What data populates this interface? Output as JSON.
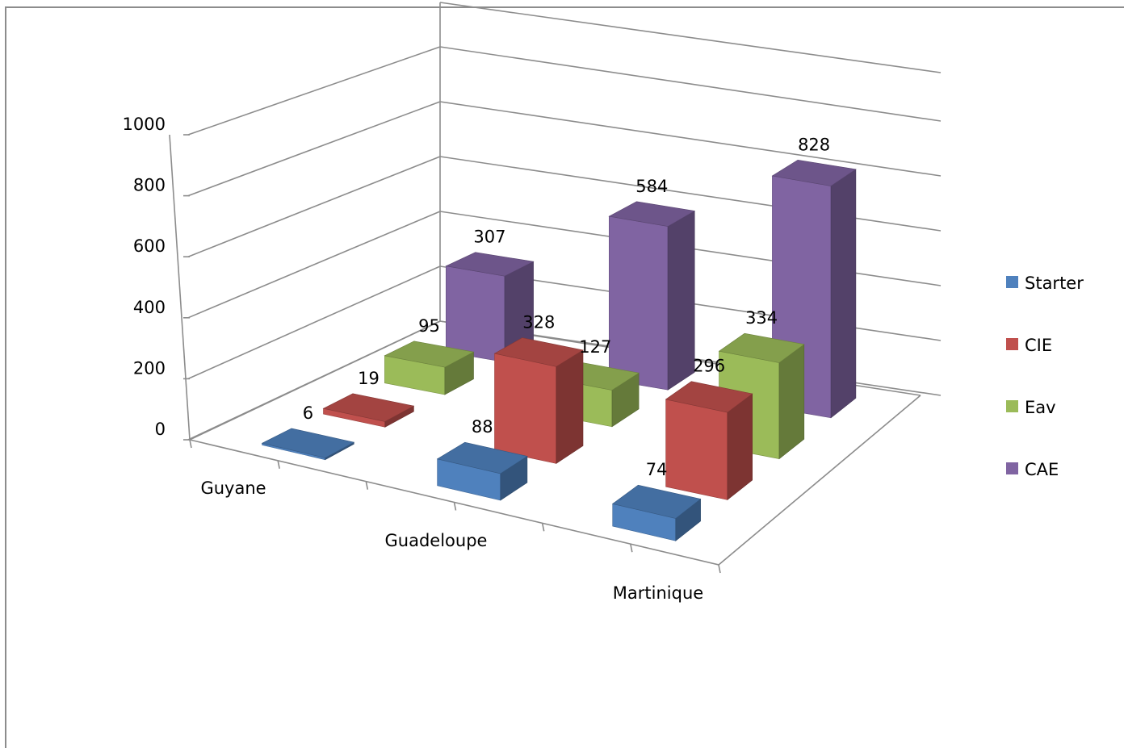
{
  "chart_data": {
    "type": "bar",
    "categories": [
      "Guyane",
      "Guadeloupe",
      "Martinique"
    ],
    "series": [
      {
        "name": "Starter",
        "values": [
          6,
          88,
          74
        ],
        "color": "#4f81bd"
      },
      {
        "name": "CIE",
        "values": [
          19,
          328,
          296
        ],
        "color": "#c0504d"
      },
      {
        "name": "Eav",
        "values": [
          95,
          127,
          334
        ],
        "color": "#9bbb59"
      },
      {
        "name": "CAE",
        "values": [
          307,
          584,
          828
        ],
        "color": "#8064a2"
      }
    ],
    "yticks": [
      "0",
      "200",
      "400",
      "600",
      "800",
      "1000"
    ],
    "ylim": [
      0,
      1000
    ],
    "grid": true,
    "legend_position": "right",
    "style": "3d-column"
  }
}
